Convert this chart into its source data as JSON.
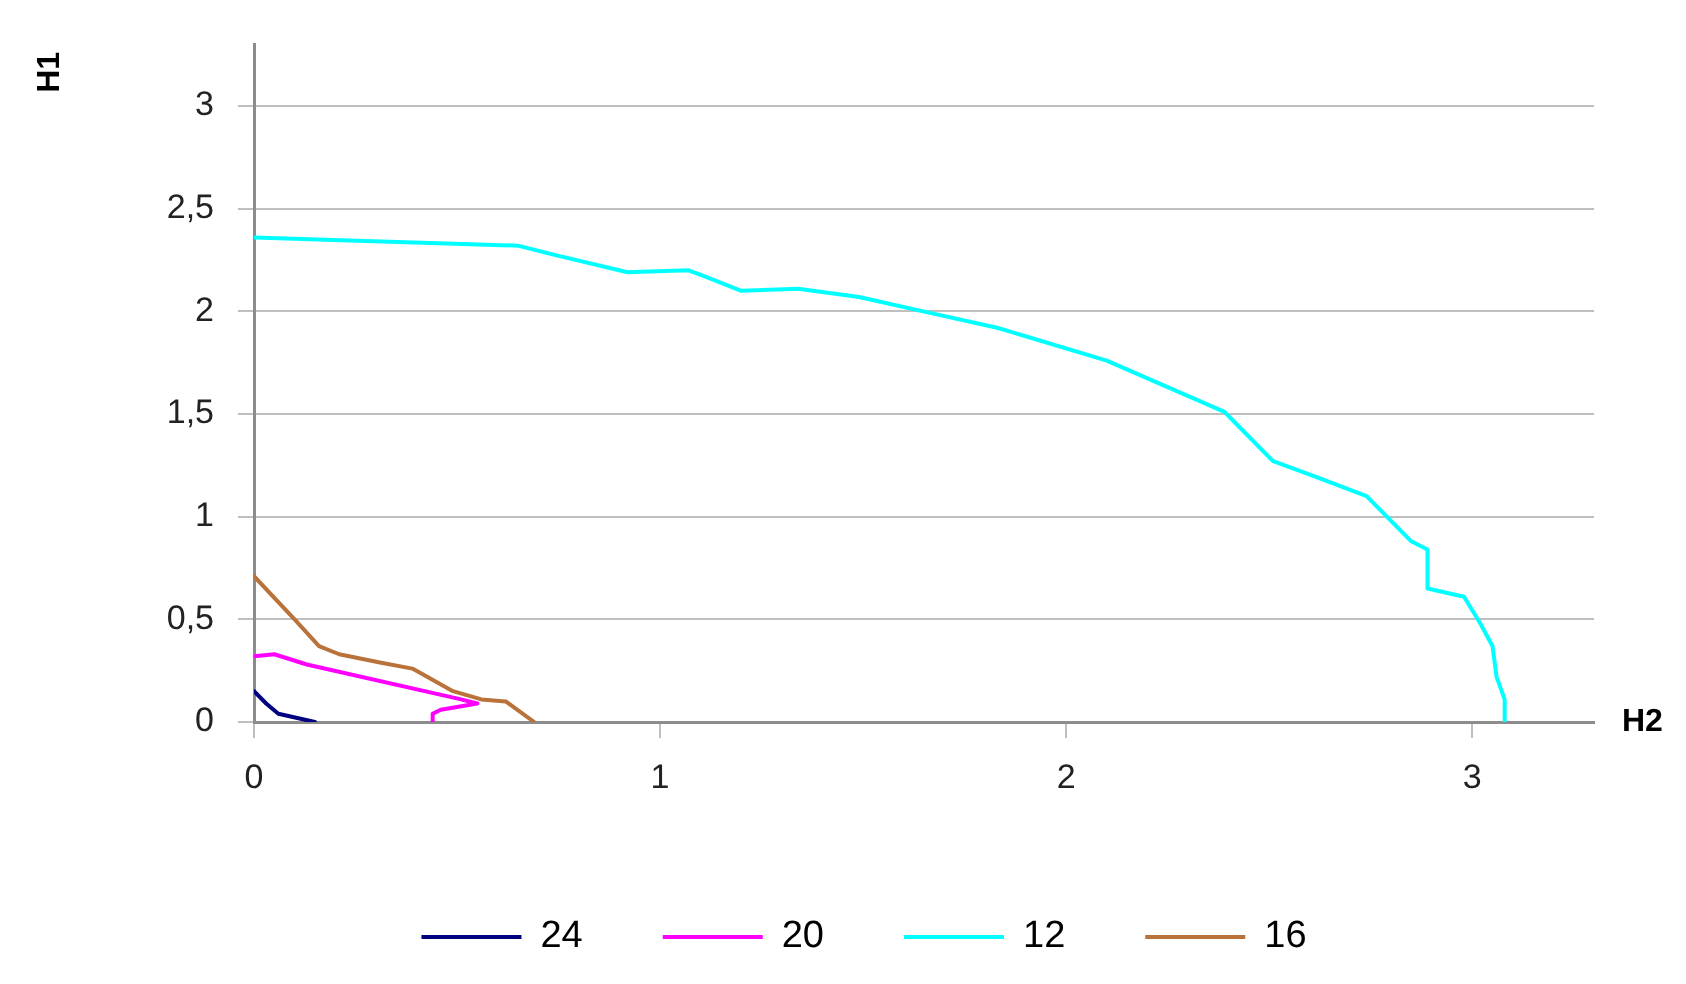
{
  "chart_data": {
    "type": "line",
    "xlabel": "H2",
    "ylabel": "H1",
    "xlim": [
      0,
      3.3
    ],
    "ylim": [
      0,
      3.3
    ],
    "xticks": [
      0,
      1,
      2,
      3
    ],
    "yticks": [
      0,
      {
        "value": 0.5,
        "label": "0,5"
      },
      1,
      {
        "value": 1.5,
        "label": "1,5"
      },
      2,
      {
        "value": 2.5,
        "label": "2,5"
      },
      3
    ],
    "grid": "y",
    "legend": "bottom",
    "marker": "none",
    "line_style": "solid",
    "series": [
      {
        "name": "24",
        "color": "#000080",
        "x": [
          0,
          0.03,
          0.06,
          0.15
        ],
        "values": [
          0.15,
          0.09,
          0.04,
          0
        ]
      },
      {
        "name": "20",
        "color": "#ff00ff",
        "x": [
          0,
          0.05,
          0.13,
          0.51,
          0.55,
          0.46,
          0.44,
          0.44
        ],
        "values": [
          0.32,
          0.33,
          0.28,
          0.11,
          0.09,
          0.06,
          0.04,
          0
        ]
      },
      {
        "name": "12",
        "color": "#00ffff",
        "x": [
          0,
          0.65,
          0.75,
          0.92,
          1.07,
          1.11,
          1.2,
          1.34,
          1.49,
          1.67,
          1.83,
          2.1,
          2.39,
          2.42,
          2.51,
          2.62,
          2.74,
          2.85,
          2.89,
          2.89,
          2.98,
          3.02,
          3.05,
          3.06,
          3.08,
          3.08
        ],
        "values": [
          2.36,
          2.32,
          2.27,
          2.19,
          2.2,
          2.17,
          2.1,
          2.11,
          2.07,
          1.99,
          1.92,
          1.76,
          1.51,
          1.45,
          1.27,
          1.19,
          1.1,
          0.88,
          0.84,
          0.65,
          0.61,
          0.48,
          0.37,
          0.22,
          0.11,
          0
        ]
      },
      {
        "name": "16",
        "color": "#b8723a",
        "x": [
          0,
          0.1,
          0.16,
          0.21,
          0.31,
          0.39,
          0.49,
          0.56,
          0.62,
          0.69
        ],
        "values": [
          0.71,
          0.5,
          0.37,
          0.33,
          0.29,
          0.26,
          0.15,
          0.11,
          0.1,
          0
        ]
      }
    ]
  }
}
